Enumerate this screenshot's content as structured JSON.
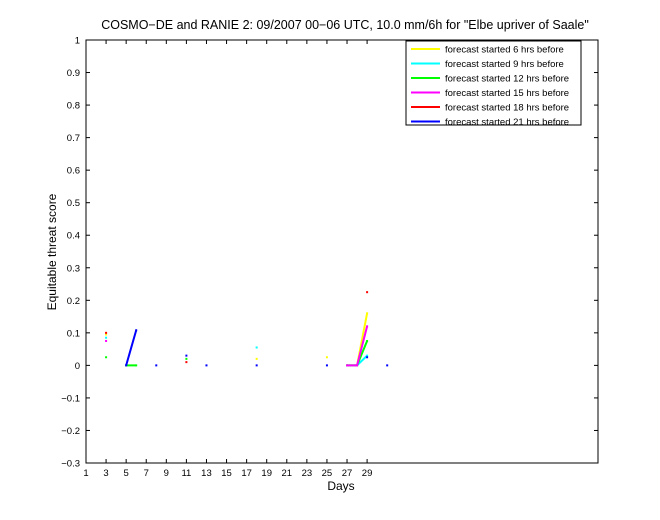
{
  "chart_data": {
    "type": "line",
    "title": "COSMO−DE and RANIE 2: 09/2007 00−06 UTC, 10.0 mm/6h for \"Elbe upriver of Saale\"",
    "xlabel": "Days",
    "ylabel": "Equitable threat score",
    "xlim": [
      1,
      52
    ],
    "ylim": [
      -0.3,
      1
    ],
    "xticks": [
      1,
      3,
      5,
      7,
      9,
      11,
      13,
      15,
      17,
      19,
      21,
      23,
      25,
      27,
      29
    ],
    "yticks": [
      -0.3,
      -0.2,
      -0.1,
      0,
      0.1,
      0.2,
      0.3,
      0.4,
      0.5,
      0.6,
      0.7,
      0.8,
      0.9,
      1
    ],
    "ytick_labels": [
      "−0.3",
      "−0.2",
      "−0.1",
      "0",
      "0.1",
      "0.2",
      "0.3",
      "0.4",
      "0.5",
      "0.6",
      "0.7",
      "0.8",
      "0.9",
      "1"
    ],
    "grid": false,
    "legend_position": "top-right",
    "series": [
      {
        "name": "forecast started 6 hrs before",
        "color": "#ffff00",
        "points": [
          [
            3,
            0.095
          ],
          [
            18,
            0.02
          ],
          [
            25,
            0.025
          ],
          [
            27,
            0
          ],
          [
            28,
            0
          ],
          [
            29,
            0.16
          ]
        ]
      },
      {
        "name": "forecast started 9 hrs before",
        "color": "#00ffff",
        "points": [
          [
            3,
            0.085
          ],
          [
            18,
            0.055
          ],
          [
            27,
            0
          ],
          [
            28,
            0
          ],
          [
            29,
            0.03
          ]
        ]
      },
      {
        "name": "forecast started 12 hrs before",
        "color": "#00ff00",
        "points": [
          [
            3,
            0.025
          ],
          [
            5,
            0
          ],
          [
            6,
            0
          ],
          [
            11,
            0.02
          ],
          [
            27,
            0
          ],
          [
            28,
            0
          ],
          [
            29,
            0.075
          ]
        ]
      },
      {
        "name": "forecast started 15 hrs before",
        "color": "#ff00ff",
        "points": [
          [
            3,
            0.075
          ],
          [
            27,
            0
          ],
          [
            28,
            0
          ],
          [
            29,
            0.12
          ]
        ]
      },
      {
        "name": "forecast started 18 hrs before",
        "color": "#ff0000",
        "points": [
          [
            3,
            0.1
          ],
          [
            11,
            0.01
          ],
          [
            29,
            0.225
          ]
        ]
      },
      {
        "name": "forecast started 21 hrs before",
        "color": "#0000ff",
        "points": [
          [
            5,
            0
          ],
          [
            6,
            0.108
          ],
          [
            8,
            0
          ],
          [
            11,
            0.03
          ],
          [
            13,
            0
          ],
          [
            18,
            0
          ],
          [
            25,
            0
          ],
          [
            29,
            0.025
          ],
          [
            31,
            0
          ]
        ]
      }
    ]
  }
}
